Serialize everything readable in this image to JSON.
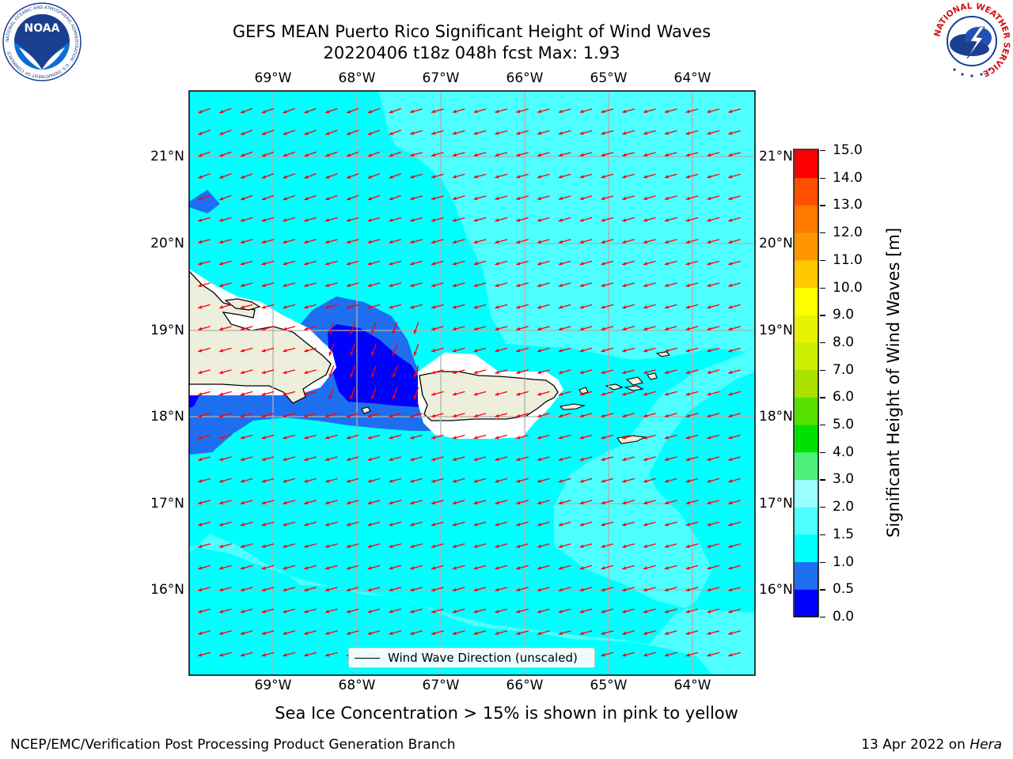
{
  "header": {
    "title_line1": "GEFS MEAN Puerto Rico Significant Height of Wind Waves",
    "title_line2": "20220406 t18z 048h fcst   Max: 1.93"
  },
  "logos": {
    "left": {
      "text": "NOAA",
      "ring_text": "NATIONAL OCEANIC AND ATMOSPHERIC ADMINISTRATION · U.S. DEPARTMENT OF COMMERCE",
      "icon": "noaa-logo"
    },
    "right": {
      "ring_text": "NATIONAL WEATHER SERVICE",
      "icon": "nws-logo"
    }
  },
  "map": {
    "lon_ticks": [
      "69°W",
      "68°W",
      "67°W",
      "66°W",
      "65°W",
      "64°W"
    ],
    "lat_ticks": [
      "21°N",
      "20°N",
      "19°N",
      "18°N",
      "17°N",
      "16°N"
    ],
    "colors": {
      "sea_0_05": "#0000ff",
      "sea_05_1": "#1e6ff0",
      "sea_1_15": "#00ffff",
      "sea_15_2": "#4dffff",
      "land": "#eeeedc",
      "arrow": "#ff0000",
      "grid": "#b0b0b0"
    },
    "legend_label": "Wind Wave Direction (unscaled)"
  },
  "colorbar": {
    "label": "Significant Height of Wind Waves [m]",
    "tick_labels": [
      "15.0",
      "14.0",
      "13.0",
      "12.0",
      "11.0",
      "10.0",
      "9.0",
      "8.0",
      "7.0",
      "6.0",
      "5.0",
      "4.0",
      "3.0",
      "2.0",
      "1.5",
      "1.0",
      "0.5",
      "0.0"
    ],
    "bins": [
      {
        "range": "0.0-0.5",
        "color": "#0000ff"
      },
      {
        "range": "0.5-1.0",
        "color": "#1e6ff0"
      },
      {
        "range": "1.0-1.5",
        "color": "#00ffff"
      },
      {
        "range": "1.5-2.0",
        "color": "#4dffff"
      },
      {
        "range": "2.0-3.0",
        "color": "#99ffff"
      },
      {
        "range": "3.0-4.0",
        "color": "#4df07a"
      },
      {
        "range": "4.0-5.0",
        "color": "#00e000"
      },
      {
        "range": "5.0-6.0",
        "color": "#55e000"
      },
      {
        "range": "6.0-7.0",
        "color": "#aae000"
      },
      {
        "range": "7.0-8.0",
        "color": "#ccee00"
      },
      {
        "range": "8.0-9.0",
        "color": "#e6f200"
      },
      {
        "range": "9.0-10.0",
        "color": "#ffff00"
      },
      {
        "range": "10.0-11.0",
        "color": "#ffc800"
      },
      {
        "range": "11.0-12.0",
        "color": "#ff9600"
      },
      {
        "range": "12.0-13.0",
        "color": "#ff7800"
      },
      {
        "range": "13.0-14.0",
        "color": "#ff5000"
      },
      {
        "range": "14.0-15.0",
        "color": "#ff0000"
      }
    ]
  },
  "note": "Sea Ice Concentration > 15% is shown in pink to yellow",
  "footer": {
    "left": "NCEP/EMC/Verification Post Processing Product Generation Branch",
    "right_prefix": "13 Apr 2022 on ",
    "right_host": "Hera"
  }
}
